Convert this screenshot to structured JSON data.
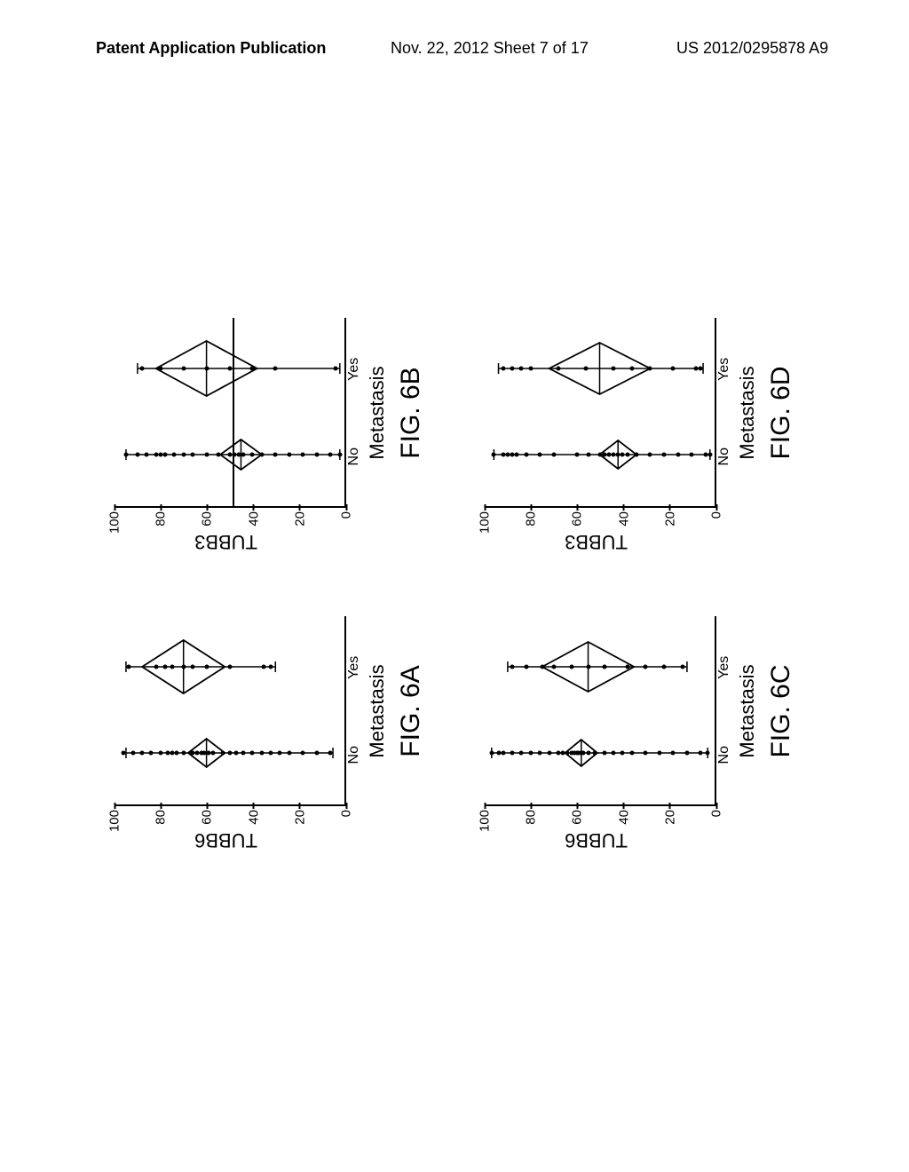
{
  "header": {
    "left": "Patent Application Publication",
    "mid": "Nov. 22, 2012  Sheet 7 of 17",
    "right": "US 2012/0295878 A9"
  },
  "axis": {
    "ymin": 0,
    "ymax": 100,
    "yticks": [
      0,
      20,
      40,
      60,
      80,
      100
    ],
    "xlabel": "Metastasis",
    "categories": [
      "No",
      "Yes"
    ]
  },
  "panels": [
    {
      "key": "A",
      "ylabel": "TUBB6",
      "figlabel": "FIG. 6A",
      "hline": null,
      "series": {
        "No": {
          "diamond_center": 60,
          "diamond_half": 8,
          "diamond_width": 32,
          "whisker_top": 95,
          "whisker_bot": 5,
          "points": [
            96,
            92,
            88,
            84,
            80,
            77,
            75,
            73,
            70,
            66,
            64,
            62,
            61,
            59,
            57,
            53,
            50,
            47,
            44,
            40,
            36,
            32,
            28,
            24,
            18,
            12,
            6
          ]
        },
        "Yes": {
          "diamond_center": 70,
          "diamond_half": 18,
          "diamond_width": 60,
          "whisker_top": 95,
          "whisker_bot": 30,
          "points": [
            94,
            82,
            78,
            75,
            70,
            66,
            60,
            50,
            35,
            32
          ]
        }
      }
    },
    {
      "key": "B",
      "ylabel": "TUBB3",
      "figlabel": "FIG. 6B",
      "hline": 48,
      "series": {
        "No": {
          "diamond_center": 45,
          "diamond_half": 9,
          "diamond_width": 34,
          "whisker_top": 95,
          "whisker_bot": 2,
          "points": [
            95,
            90,
            86,
            82,
            80,
            78,
            74,
            70,
            66,
            60,
            55,
            50,
            48,
            46,
            44,
            40,
            36,
            30,
            24,
            18,
            12,
            6,
            2
          ]
        },
        "Yes": {
          "diamond_center": 60,
          "diamond_half": 22,
          "diamond_width": 62,
          "whisker_top": 90,
          "whisker_bot": 2,
          "points": [
            88,
            80,
            70,
            60,
            50,
            40,
            30,
            4
          ]
        }
      }
    },
    {
      "key": "C",
      "ylabel": "TUBB6",
      "figlabel": "FIG. 6C",
      "hline": null,
      "series": {
        "No": {
          "diamond_center": 58,
          "diamond_half": 7,
          "diamond_width": 30,
          "whisker_top": 97,
          "whisker_bot": 3,
          "points": [
            97,
            94,
            92,
            88,
            84,
            80,
            76,
            72,
            68,
            66,
            64,
            62,
            61,
            60,
            59,
            58,
            57,
            55,
            52,
            48,
            44,
            40,
            36,
            30,
            24,
            18,
            12,
            6,
            3
          ]
        },
        "Yes": {
          "diamond_center": 55,
          "diamond_half": 20,
          "diamond_width": 56,
          "whisker_top": 90,
          "whisker_bot": 12,
          "points": [
            88,
            82,
            75,
            70,
            62,
            55,
            48,
            38,
            30,
            22,
            14
          ]
        }
      }
    },
    {
      "key": "D",
      "ylabel": "TUBB3",
      "figlabel": "FIG. 6D",
      "hline": null,
      "series": {
        "No": {
          "diamond_center": 42,
          "diamond_half": 8,
          "diamond_width": 32,
          "whisker_top": 96,
          "whisker_bot": 2,
          "points": [
            96,
            92,
            90,
            88,
            86,
            82,
            76,
            70,
            60,
            55,
            50,
            48,
            46,
            44,
            42,
            40,
            38,
            34,
            28,
            22,
            16,
            10,
            4,
            2
          ]
        },
        "Yes": {
          "diamond_center": 50,
          "diamond_half": 22,
          "diamond_width": 58,
          "whisker_top": 94,
          "whisker_bot": 5,
          "points": [
            92,
            88,
            84,
            80,
            68,
            56,
            44,
            36,
            28,
            18,
            8,
            6
          ]
        }
      }
    }
  ],
  "colors": {
    "stroke": "#000000",
    "bg": "#ffffff"
  }
}
